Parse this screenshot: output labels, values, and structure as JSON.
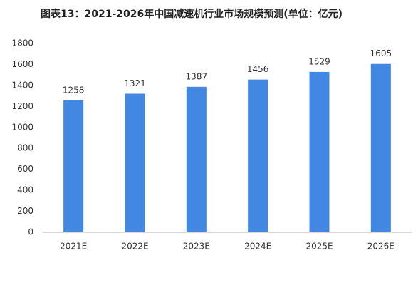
{
  "chart_data": {
    "type": "bar",
    "title": "图表13：2021-2026年中国减速机行业市场规模预测(单位：亿元)",
    "categories": [
      "2021E",
      "2022E",
      "2023E",
      "2024E",
      "2025E",
      "2026E"
    ],
    "values": [
      1258,
      1321,
      1387,
      1456,
      1529,
      1605
    ],
    "color": "#4287e1",
    "ylim": [
      0,
      1800
    ],
    "yticks": [
      0,
      200,
      400,
      600,
      800,
      1000,
      1200,
      1400,
      1600,
      1800
    ],
    "grid": false
  }
}
